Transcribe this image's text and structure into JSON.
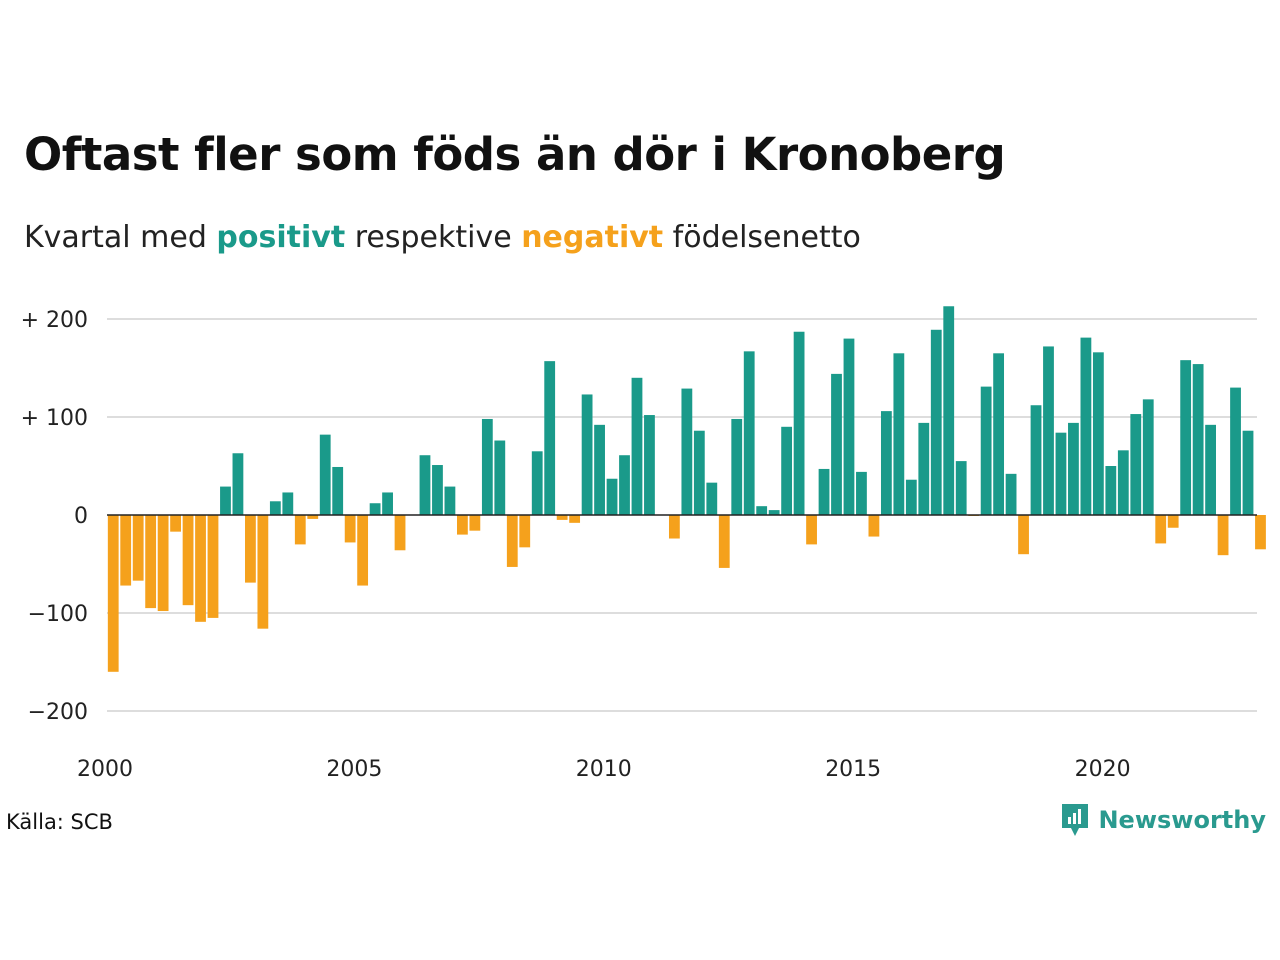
{
  "title": "Oftast fler som föds än dör i Kronoberg",
  "subtitle": {
    "prefix": "Kvartal med ",
    "positive_word": "positivt",
    "middle": " respektive ",
    "negative_word": "negativt",
    "suffix": " födelsenetto"
  },
  "source": "Källa: SCB",
  "brand": {
    "name": "Newsworthy",
    "logo_icon": "newsworthy-logo-icon"
  },
  "colors": {
    "positive": "#1a9a8a",
    "negative": "#f5a11c",
    "grid": "#dddddd",
    "zero_line": "#222222"
  },
  "chart_data": {
    "type": "bar",
    "x_start": "2000 Q1",
    "x_end": "2023 Q1",
    "values": [
      -160,
      -72,
      -67,
      -95,
      -98,
      -17,
      -92,
      -109,
      -105,
      29,
      63,
      -69,
      -116,
      14,
      23,
      -30,
      -4,
      82,
      49,
      -28,
      -72,
      12,
      23,
      -36,
      0,
      61,
      51,
      29,
      -20,
      -16,
      98,
      76,
      -53,
      -33,
      65,
      157,
      -5,
      -8,
      123,
      92,
      37,
      61,
      140,
      102,
      0,
      -24,
      129,
      86,
      33,
      -54,
      98,
      167,
      9,
      5,
      90,
      187,
      -30,
      47,
      144,
      180,
      44,
      -22,
      106,
      165,
      36,
      94,
      189,
      213,
      55,
      -1,
      131,
      165,
      42,
      -40,
      112,
      172,
      84,
      94,
      181,
      166,
      50,
      66,
      103,
      118,
      -29,
      -13,
      158,
      154,
      92,
      -41,
      130,
      86,
      -35
    ],
    "yticks": [
      200,
      100,
      0,
      -100,
      -200
    ],
    "ytick_labels": [
      "+ 200",
      "+ 100",
      "0",
      "−100",
      "−200"
    ],
    "xticks": [
      "2000",
      "2005",
      "2010",
      "2015",
      "2020"
    ],
    "ylim": [
      -200,
      210
    ],
    "grid": true
  }
}
